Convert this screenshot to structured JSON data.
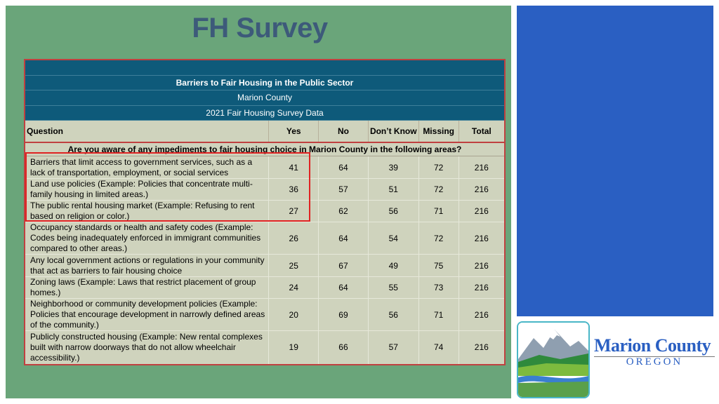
{
  "slide": {
    "title": "FH Survey",
    "logo": {
      "name_line1": "Marion County",
      "name_line2": "OREGON"
    }
  },
  "table": {
    "header_lines": [
      "Barriers to Fair Housing in the Public Sector",
      "Marion County",
      "2021 Fair Housing Survey Data"
    ],
    "columns": [
      "Question",
      "Yes",
      "No",
      "Don’t Know",
      "Missing",
      "Total"
    ],
    "section": "Are you aware of any impediments to fair housing choice in Marion County in the following areas?",
    "rows": [
      {
        "question": "Barriers that limit access to government services, such as a lack of transportation, employment, or social services",
        "yes": "41",
        "no": "64",
        "dont_know": "39",
        "missing": "72",
        "total": "216"
      },
      {
        "question": "Land use policies (Example: Policies that concentrate multi-family housing in limited areas.)",
        "yes": "36",
        "no": "57",
        "dont_know": "51",
        "missing": "72",
        "total": "216"
      },
      {
        "question": "The public rental housing market (Example: Refusing to rent based on religion or color.)",
        "yes": "27",
        "no": "62",
        "dont_know": "56",
        "missing": "71",
        "total": "216"
      },
      {
        "question": "Occupancy standards or health and safety codes (Example: Codes being inadequately enforced in immigrant communities compared to other areas.)",
        "yes": "26",
        "no": "64",
        "dont_know": "54",
        "missing": "72",
        "total": "216"
      },
      {
        "question": "Any local government actions or regulations in your community that act as barriers to fair housing choice",
        "yes": "25",
        "no": "67",
        "dont_know": "49",
        "missing": "75",
        "total": "216"
      },
      {
        "question": "Zoning laws (Example: Laws that restrict placement of group homes.)",
        "yes": "24",
        "no": "64",
        "dont_know": "55",
        "missing": "73",
        "total": "216"
      },
      {
        "question": "Neighborhood or community development policies (Example: Policies that encourage development in narrowly defined areas of the community.)",
        "yes": "20",
        "no": "69",
        "dont_know": "56",
        "missing": "71",
        "total": "216"
      },
      {
        "question": "Publicly constructed housing (Example: New rental complexes built with narrow doorways that do not allow wheelchair accessibility.)",
        "yes": "19",
        "no": "66",
        "dont_know": "57",
        "missing": "74",
        "total": "216"
      }
    ]
  },
  "colors": {
    "slide_bg": "#6aa57a",
    "title": "#3d5a7a",
    "table_header_bg": "#0e5a7a",
    "table_body_bg": "#cfd3bd",
    "blue_panel": "#2a5fc2",
    "highlight": "#e02222"
  }
}
